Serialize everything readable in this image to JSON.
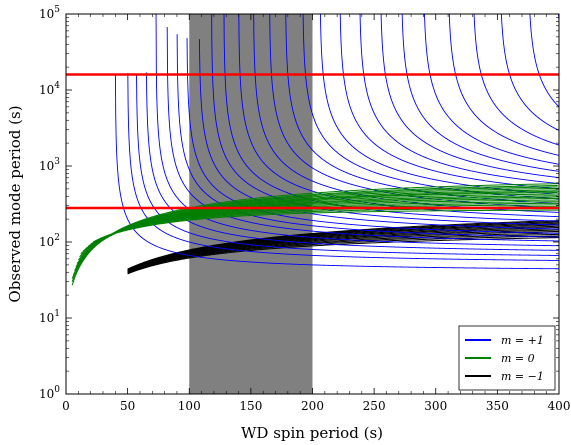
{
  "chart_data": {
    "type": "line",
    "title": "",
    "xlabel": "WD spin period (s)",
    "ylabel": "Observed mode period (s)",
    "xlim": [
      0,
      400
    ],
    "ylim": [
      1,
      100000
    ],
    "yscale": "log",
    "grid": false,
    "legend_position": "bottom-right",
    "x_ticks": [
      0,
      50,
      100,
      150,
      200,
      250,
      300,
      350,
      400
    ],
    "x_tick_labels": [
      "0",
      "50",
      "100",
      "150",
      "200",
      "250",
      "300",
      "350",
      "400"
    ],
    "y_ticks": [
      1,
      10,
      100,
      1000,
      10000,
      100000
    ],
    "y_tick_labels": [
      {
        "base": "10",
        "exp": "0"
      },
      {
        "base": "10",
        "exp": "1"
      },
      {
        "base": "10",
        "exp": "2"
      },
      {
        "base": "10",
        "exp": "3"
      },
      {
        "base": "10",
        "exp": "4"
      },
      {
        "base": "10",
        "exp": "5"
      }
    ],
    "shaded_region": {
      "x_from": 100,
      "x_to": 200,
      "color": "#808080"
    },
    "hlines": [
      {
        "y": 16000,
        "color": "#ff0000"
      },
      {
        "y": 280,
        "color": "#ff0000"
      }
    ],
    "series": [
      {
        "name": "m = +1",
        "m": 1,
        "color": "#0000ff",
        "description": "P_obs = 1 / (1/P_mode - 1/P_spin), one curve per mode period",
        "mode_periods": [
          40,
          50,
          57,
          65,
          73,
          82,
          90,
          98,
          108,
          118,
          128,
          140,
          152,
          165,
          178,
          192,
          206,
          222,
          238,
          255,
          272,
          290,
          310,
          330,
          352,
          375,
          398
        ]
      },
      {
        "name": "m = 0",
        "m": 0,
        "color": "#008000",
        "description": "Observed period rises with spin period and saturates near 300–650 s",
        "curves": [
          {
            "x_start": 5,
            "y_start": 27,
            "asymptote": 660,
            "scale": 185
          },
          {
            "x_start": 5,
            "y_start": 30,
            "asymptote": 620,
            "scale": 180
          },
          {
            "x_start": 5,
            "y_start": 33,
            "asymptote": 590,
            "scale": 175
          },
          {
            "x_start": 6,
            "y_start": 37,
            "asymptote": 560,
            "scale": 170
          },
          {
            "x_start": 7,
            "y_start": 42,
            "asymptote": 530,
            "scale": 165
          },
          {
            "x_start": 8,
            "y_start": 47,
            "asymptote": 505,
            "scale": 160
          },
          {
            "x_start": 9,
            "y_start": 52,
            "asymptote": 480,
            "scale": 150
          },
          {
            "x_start": 10,
            "y_start": 58,
            "asymptote": 455,
            "scale": 145
          },
          {
            "x_start": 11,
            "y_start": 64,
            "asymptote": 430,
            "scale": 140
          },
          {
            "x_start": 12,
            "y_start": 70,
            "asymptote": 410,
            "scale": 135
          },
          {
            "x_start": 14,
            "y_start": 76,
            "asymptote": 390,
            "scale": 130
          },
          {
            "x_start": 16,
            "y_start": 82,
            "asymptote": 370,
            "scale": 125
          },
          {
            "x_start": 18,
            "y_start": 88,
            "asymptote": 350,
            "scale": 120
          },
          {
            "x_start": 20,
            "y_start": 94,
            "asymptote": 332,
            "scale": 115
          },
          {
            "x_start": 22,
            "y_start": 100,
            "asymptote": 315,
            "scale": 110
          },
          {
            "x_start": 25,
            "y_start": 106,
            "asymptote": 298,
            "scale": 105
          },
          {
            "x_start": 28,
            "y_start": 112,
            "asymptote": 282,
            "scale": 100
          },
          {
            "x_start": 32,
            "y_start": 118,
            "asymptote": 266,
            "scale": 95
          }
        ]
      },
      {
        "name": "m = −1",
        "m": -1,
        "color": "#000000",
        "description": "P_obs = 1 / (1/P_mode + 1/P_spin), one curve per mode period",
        "x_start": 50,
        "mode_periods": [
          160,
          172,
          184,
          196,
          210,
          224,
          238,
          254,
          270,
          288,
          306,
          326,
          346,
          368
        ]
      }
    ]
  }
}
